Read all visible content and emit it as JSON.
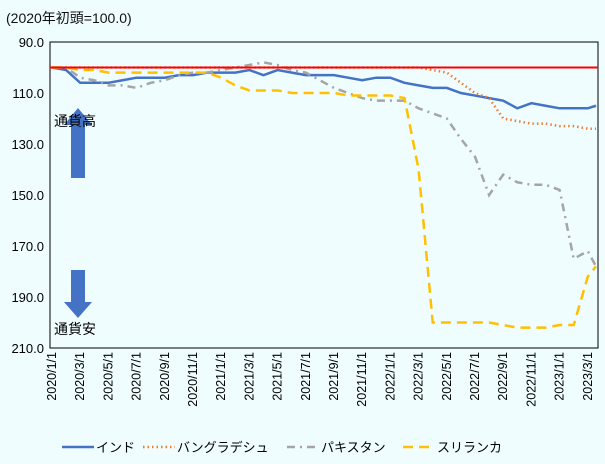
{
  "chart_data": {
    "type": "line",
    "unit_note": "(2020年初頭=100.0)",
    "ylim": [
      90,
      210
    ],
    "y_reversed": true,
    "y_ticks": [
      "90.0",
      "110.0",
      "130.0",
      "150.0",
      "170.0",
      "190.0",
      "210.0"
    ],
    "x_ticks": [
      "2020/1/1",
      "2020/3/1",
      "2020/5/1",
      "2020/7/1",
      "2020/9/1",
      "2020/11/1",
      "2021/1/1",
      "2021/3/1",
      "2021/5/1",
      "2021/7/1",
      "2021/9/1",
      "2021/11/1",
      "2022/1/1",
      "2022/3/1",
      "2022/5/1",
      "2022/7/1",
      "2022/9/1",
      "2022/11/1",
      "2023/1/1",
      "2023/3/1"
    ],
    "x_note": "x = months since 2020/1/1",
    "reference_line": {
      "value": 100,
      "color": "#ff0000"
    },
    "annotations": {
      "up": "通貨高",
      "down": "通貨安"
    },
    "series": [
      {
        "name": "インド",
        "color": "#4472c4",
        "style": "solid",
        "values": [
          100,
          101,
          106,
          106,
          106,
          105,
          104,
          104,
          104,
          103,
          103,
          102,
          102,
          102,
          101,
          103,
          101,
          102,
          103,
          103,
          103,
          104,
          105,
          104,
          104,
          106,
          107,
          108,
          108,
          110,
          111,
          112,
          113,
          116,
          114,
          115,
          116,
          116,
          116,
          115
        ]
      },
      {
        "name": "バングラデシュ",
        "color": "#ed7d31",
        "style": "dotted",
        "values": [
          100,
          100,
          100,
          100,
          100,
          100,
          100,
          100,
          100,
          100,
          100,
          100,
          100,
          100,
          100,
          100,
          100,
          100,
          100,
          100,
          100,
          100,
          100,
          100,
          100,
          100,
          100,
          101,
          102,
          106,
          110,
          112,
          120,
          121,
          122,
          122,
          123,
          123,
          124,
          124
        ]
      },
      {
        "name": "パキスタン",
        "color": "#a5a5a5",
        "style": "dashdot",
        "values": [
          100,
          100,
          104,
          105,
          107,
          107,
          108,
          106,
          105,
          103,
          102,
          102,
          101,
          100,
          99,
          98,
          99,
          101,
          102,
          105,
          108,
          110,
          112,
          113,
          113,
          113,
          116,
          118,
          120,
          128,
          135,
          150,
          142,
          145,
          146,
          146,
          148,
          175,
          172,
          178
        ]
      },
      {
        "name": "スリランカ",
        "color": "#ffc000",
        "style": "dashed",
        "values": [
          100,
          100,
          101,
          101,
          102,
          102,
          102,
          102,
          102,
          102,
          102,
          102,
          104,
          107,
          109,
          109,
          109,
          110,
          110,
          110,
          110,
          111,
          111,
          111,
          111,
          112,
          140,
          200,
          200,
          200,
          200,
          200,
          201,
          202,
          202,
          202,
          201,
          201,
          182,
          178
        ]
      }
    ]
  }
}
